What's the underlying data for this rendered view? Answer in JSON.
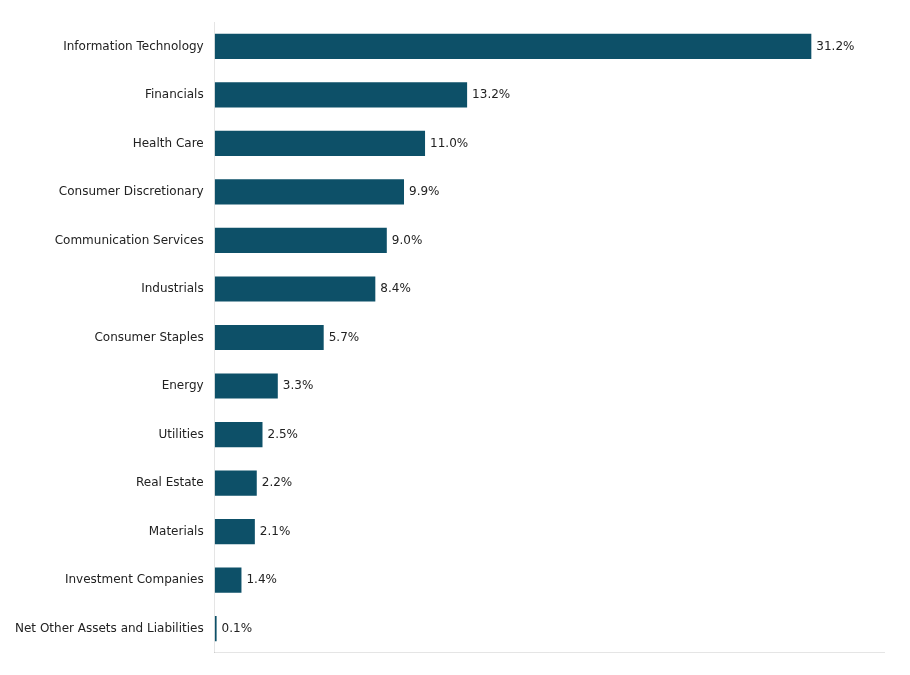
{
  "chart_data": {
    "type": "bar",
    "orientation": "horizontal",
    "categories": [
      "Net Other Assets and Liabilities",
      "Investment Companies",
      "Materials",
      "Real Estate",
      "Utilities",
      "Energy",
      "Consumer Staples",
      "Industrials",
      "Communication Services",
      "Consumer Discretionary",
      "Health Care",
      "Financials",
      "Information Technology"
    ],
    "values": [
      0.1,
      1.4,
      2.1,
      2.2,
      2.5,
      3.3,
      5.7,
      8.4,
      9.0,
      9.9,
      11.0,
      13.2,
      31.2
    ],
    "value_labels": [
      "0.1%",
      "1.4%",
      "2.1%",
      "2.2%",
      "2.5%",
      "3.3%",
      "5.7%",
      "8.4%",
      "9.0%",
      "9.9%",
      "11.0%",
      "13.2%",
      "31.2%"
    ],
    "color": "#0d5068",
    "xlim": [
      0,
      35
    ],
    "grid": false,
    "data_labels": true,
    "tick_labels": "y"
  }
}
